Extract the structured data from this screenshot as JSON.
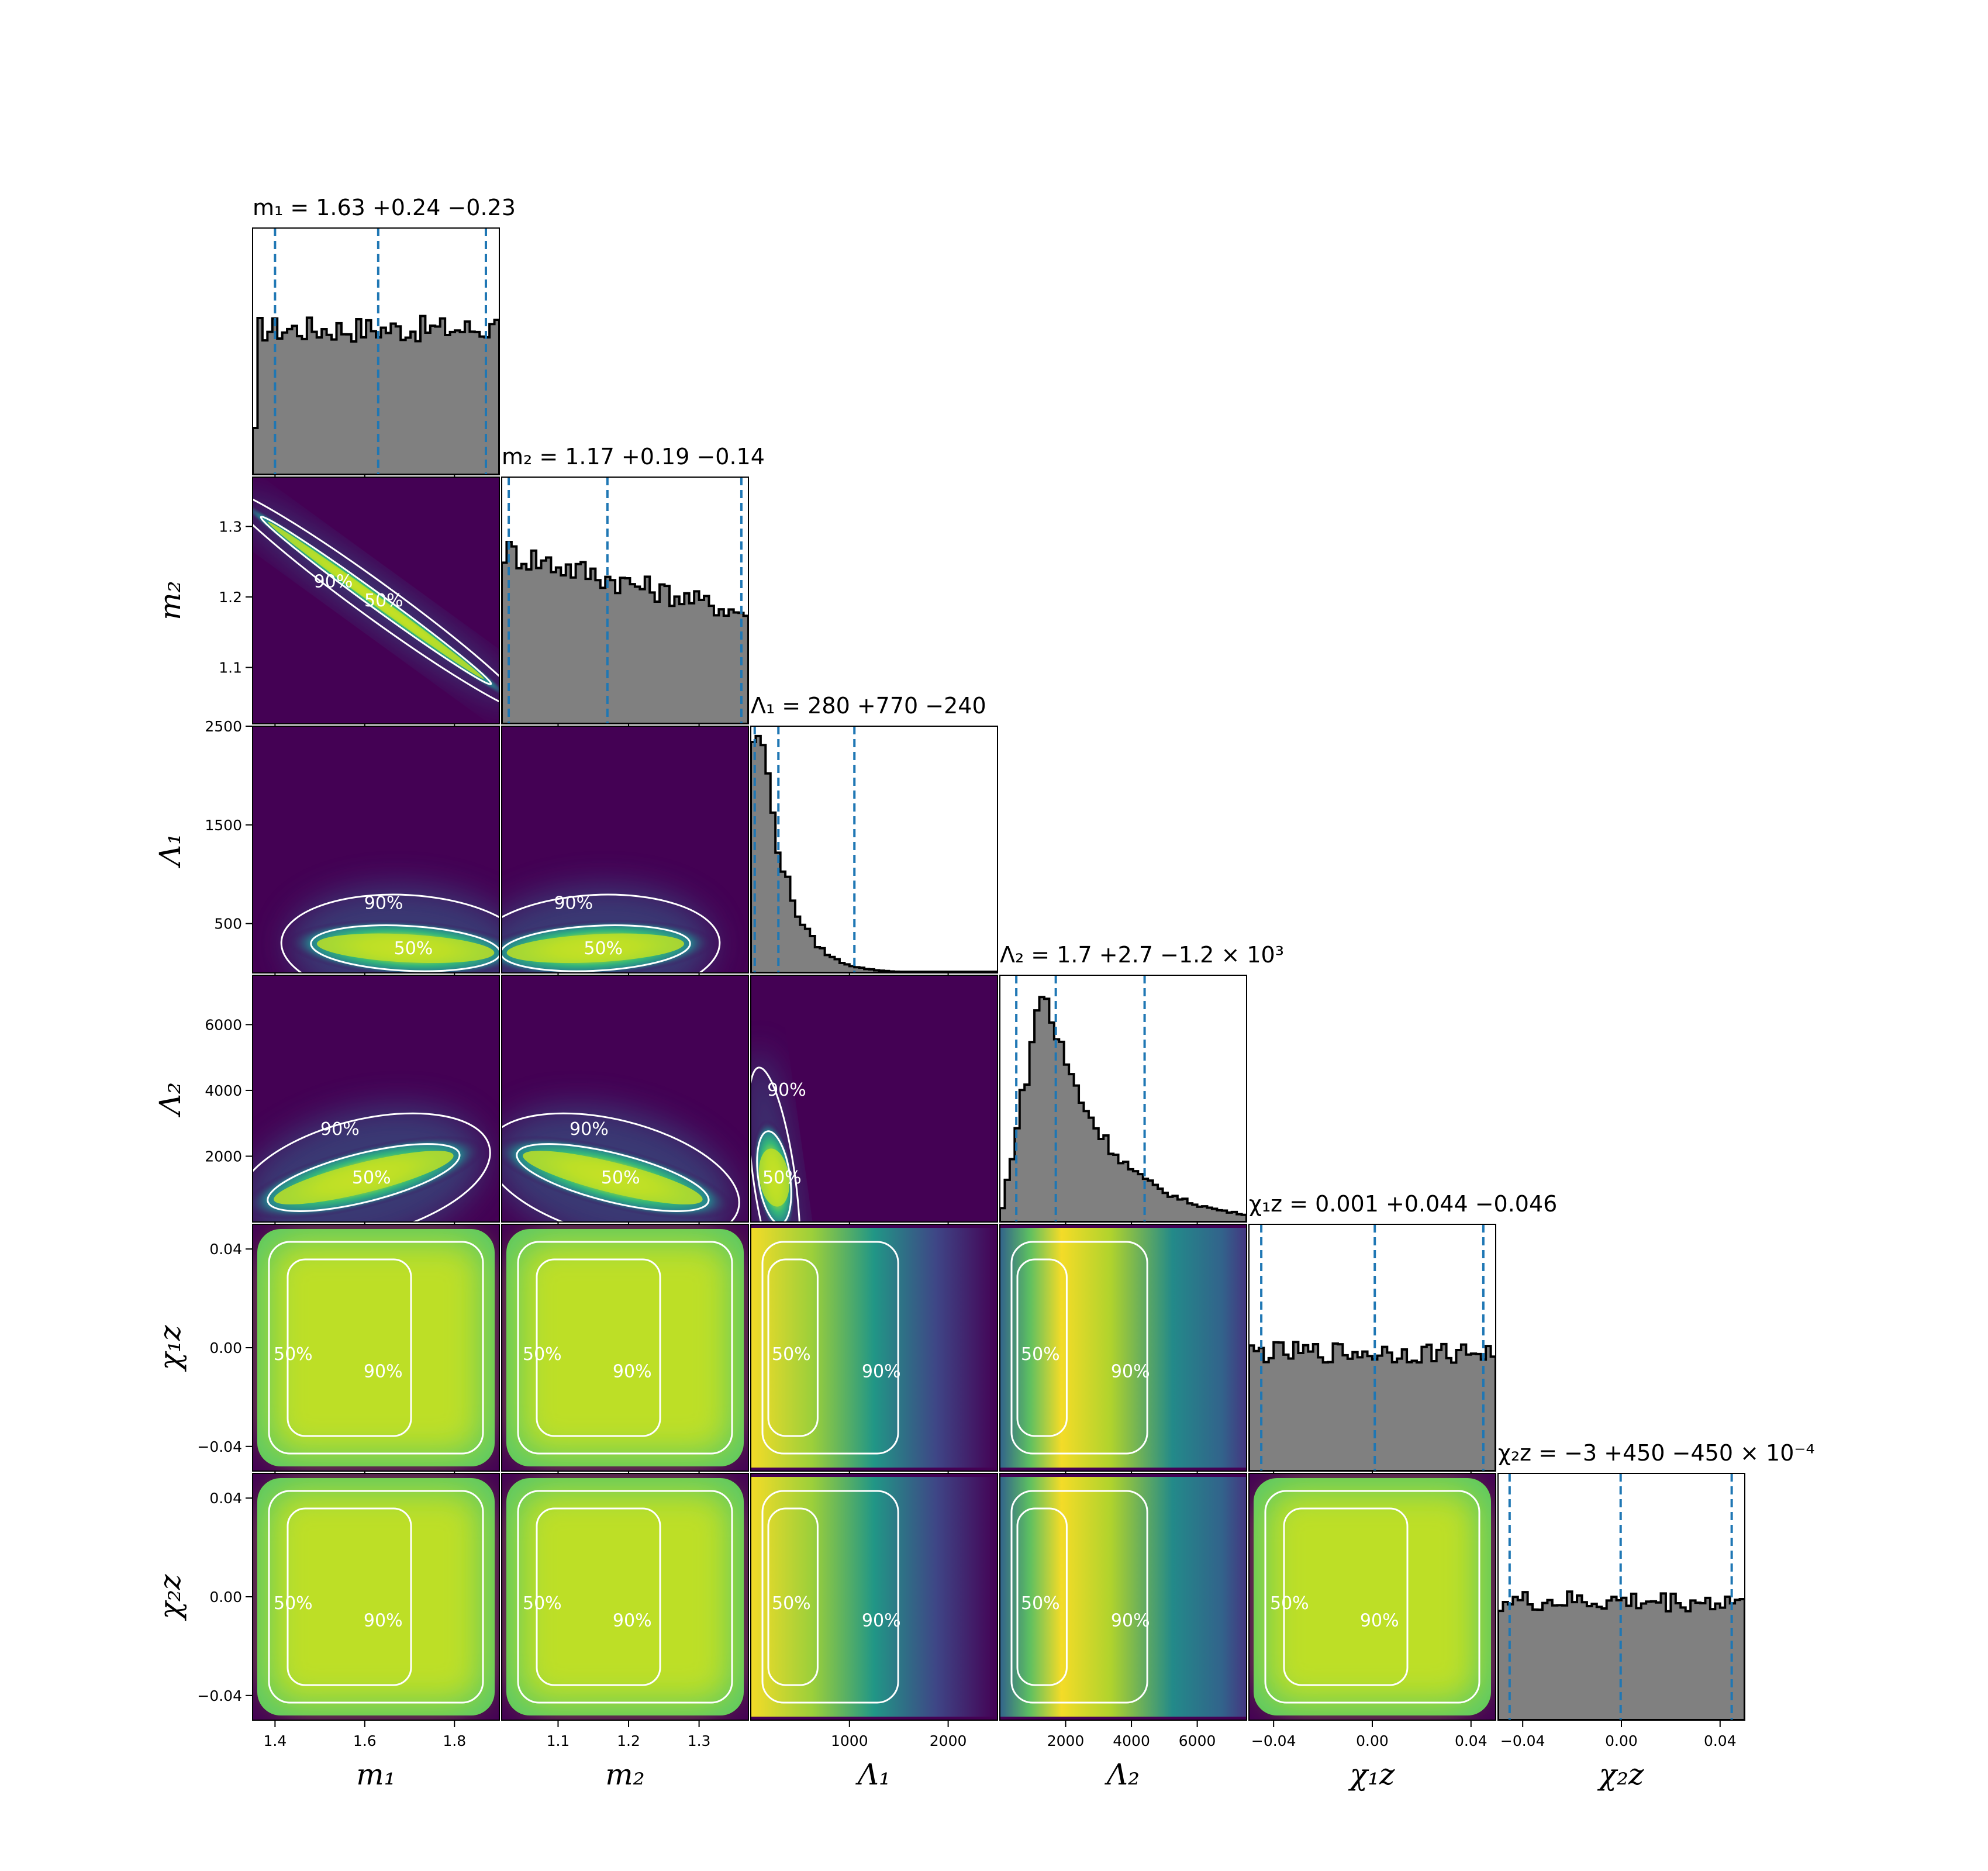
{
  "chart_data": {
    "type": "corner",
    "parameters": [
      {
        "key": "m1",
        "label": "m₁",
        "range": [
          1.35,
          1.9
        ],
        "ticks": [
          "1.4",
          "1.6",
          "1.8"
        ],
        "tick_values": [
          1.4,
          1.6,
          1.8
        ],
        "title": "m₁ = 1.63 +0.24 −0.23",
        "median": 1.63,
        "lower": 1.4,
        "upper": 1.87
      },
      {
        "key": "m2",
        "label": "m₂",
        "range": [
          1.02,
          1.37
        ],
        "ticks": [
          "1.1",
          "1.2",
          "1.3"
        ],
        "tick_values": [
          1.1,
          1.2,
          1.3
        ],
        "title": "m₂ = 1.17 +0.19 −0.14",
        "median": 1.17,
        "lower": 1.03,
        "upper": 1.36
      },
      {
        "key": "L1",
        "label": "Λ₁",
        "range": [
          0,
          2500
        ],
        "ticks": [
          "1000",
          "2000"
        ],
        "tick_values": [
          1000,
          2000
        ],
        "y_ticks": [
          "500",
          "1500",
          "2500"
        ],
        "y_tick_values": [
          500,
          1500,
          2500
        ],
        "title": "Λ₁ = 280 +770 −240",
        "median": 280,
        "lower": 40,
        "upper": 1050
      },
      {
        "key": "L2",
        "label": "Λ₂",
        "range": [
          0,
          7500
        ],
        "ticks": [
          "2000",
          "4000",
          "6000"
        ],
        "tick_values": [
          2000,
          4000,
          6000
        ],
        "title": "Λ₂ = 1.7 +2.7 −1.2 × 10³",
        "median": 1700,
        "lower": 500,
        "upper": 4400
      },
      {
        "key": "chi1z",
        "label": "χ₁z",
        "range": [
          -0.05,
          0.05
        ],
        "ticks": [
          "−0.04",
          "0.00",
          "0.04"
        ],
        "tick_values": [
          -0.04,
          0.0,
          0.04
        ],
        "title": "χ₁z = 0.001 +0.044 −0.046",
        "median": 0.001,
        "lower": -0.045,
        "upper": 0.045
      },
      {
        "key": "chi2z",
        "label": "χ₂z",
        "range": [
          -0.05,
          0.05
        ],
        "ticks": [
          "−0.04",
          "0.00",
          "0.04"
        ],
        "tick_values": [
          -0.04,
          0.0,
          0.04
        ],
        "title": "χ₂z = −3 +450 −450 × 10⁻⁴",
        "median": -0.0003,
        "lower": -0.0453,
        "upper": 0.0447
      }
    ],
    "contour_levels": [
      "50%",
      "90%"
    ],
    "colormap": "viridis",
    "colors": {
      "hist_fill": "#808080",
      "hist_edge": "#000000",
      "quantile_line": "#1f77b4",
      "contour": "#ffffff"
    }
  }
}
